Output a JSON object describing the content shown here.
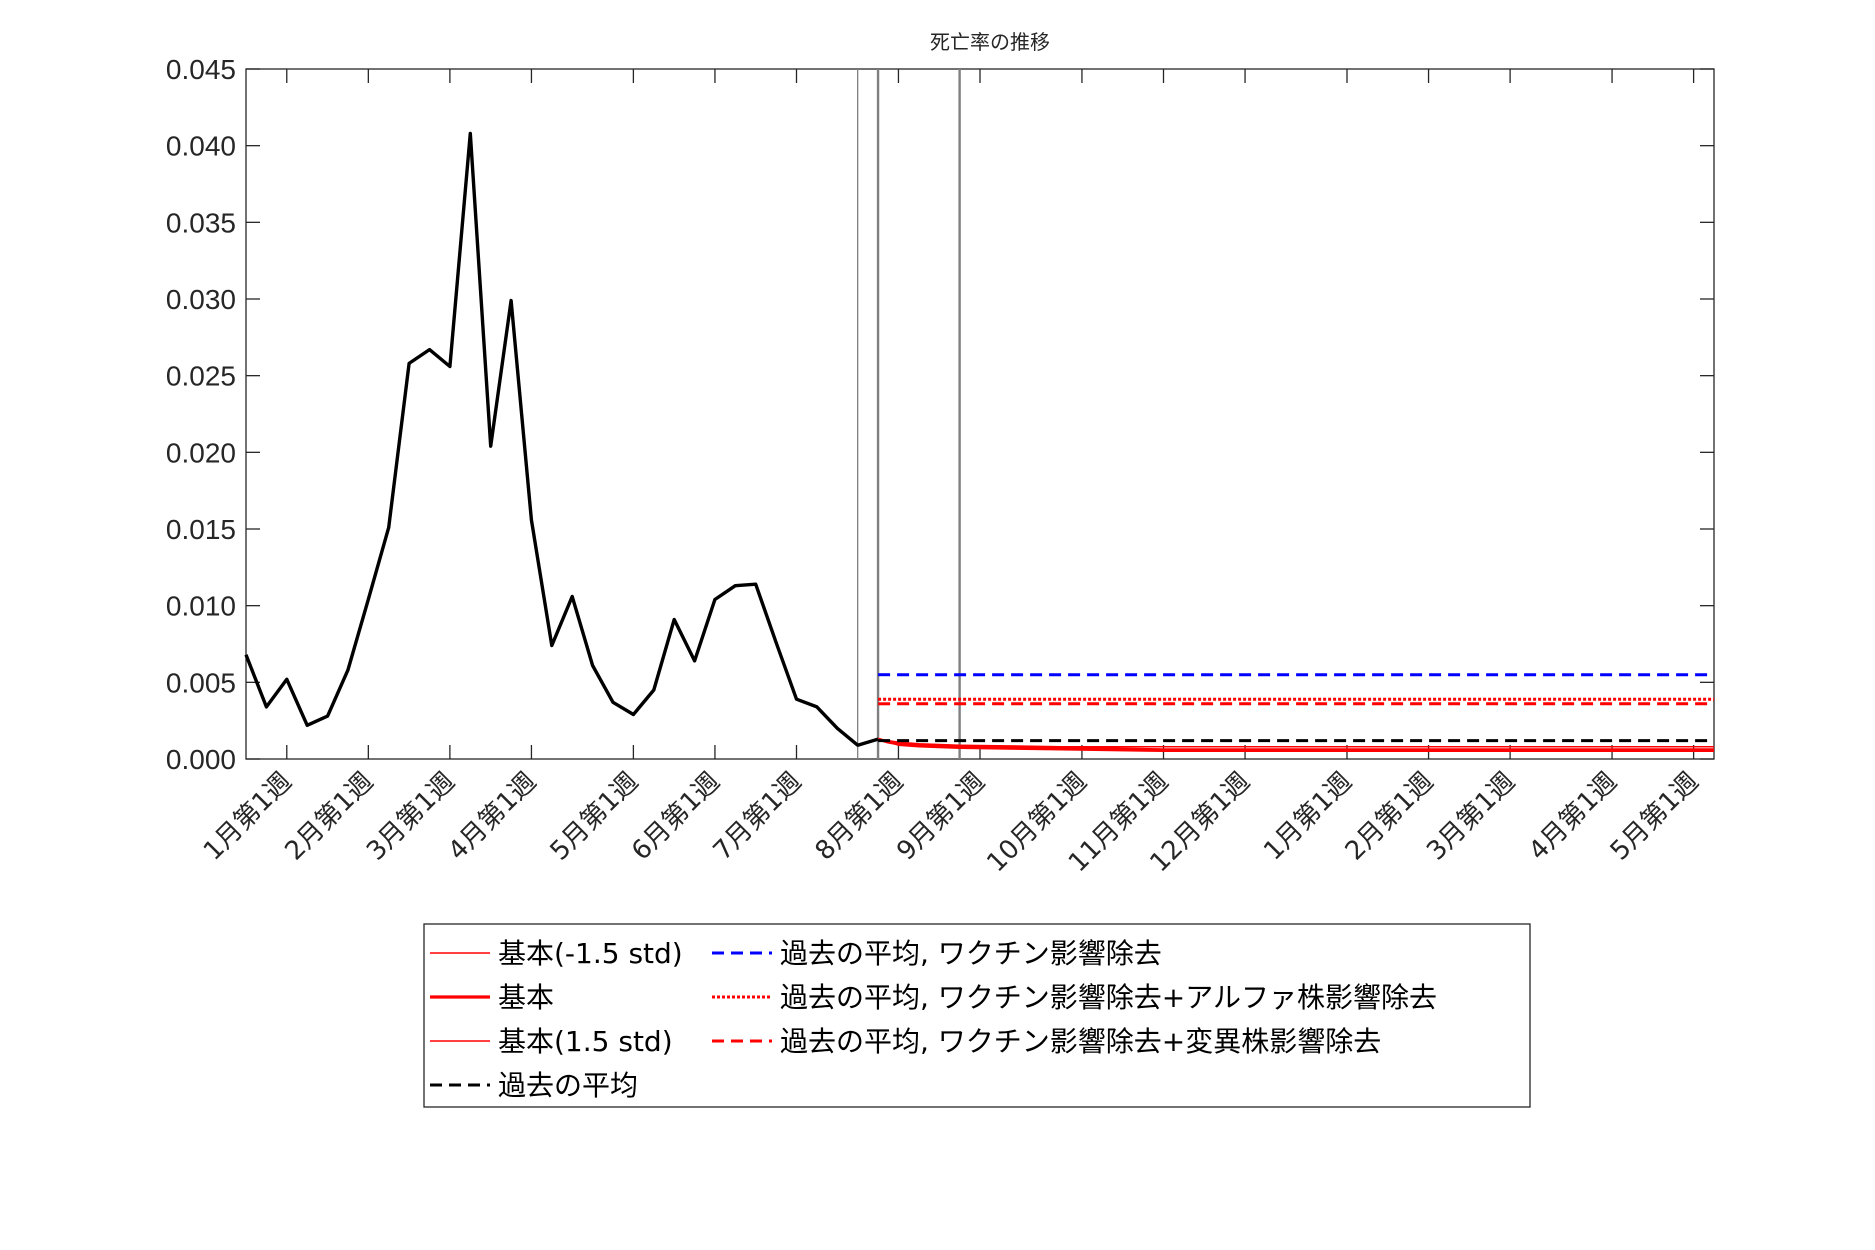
{
  "chart_data": {
    "type": "line",
    "title": "死亡率の推移",
    "xlabel": "",
    "ylabel": "",
    "ylim": [
      0,
      0.045
    ],
    "xlim": [
      0,
      72
    ],
    "y_ticks": [
      0,
      0.005,
      0.01,
      0.015,
      0.02,
      0.025,
      0.03,
      0.035,
      0.04,
      0.045
    ],
    "y_tick_labels": [
      "0.000",
      "0.005",
      "0.010",
      "0.015",
      "0.020",
      "0.025",
      "0.030",
      "0.035",
      "0.040",
      "0.045"
    ],
    "x_ticks": [
      {
        "x": 2,
        "label": "1月第1週"
      },
      {
        "x": 6,
        "label": "2月第1週"
      },
      {
        "x": 10,
        "label": "3月第1週"
      },
      {
        "x": 14,
        "label": "4月第1週"
      },
      {
        "x": 19,
        "label": "5月第1週"
      },
      {
        "x": 23,
        "label": "6月第1週"
      },
      {
        "x": 27,
        "label": "7月第1週"
      },
      {
        "x": 32,
        "label": "8月第1週"
      },
      {
        "x": 36,
        "label": "9月第1週"
      },
      {
        "x": 41,
        "label": "10月第1週"
      },
      {
        "x": 45,
        "label": "11月第1週"
      },
      {
        "x": 49,
        "label": "12月第1週"
      },
      {
        "x": 54,
        "label": "1月第1週"
      },
      {
        "x": 58,
        "label": "2月第1週"
      },
      {
        "x": 62,
        "label": "3月第1週"
      },
      {
        "x": 67,
        "label": "4月第1週"
      },
      {
        "x": 71,
        "label": "5月第1週"
      }
    ],
    "vertical_lines": [
      30,
      31,
      35
    ],
    "grid": false,
    "legend_position": "bottom",
    "legend_columns": [
      [
        "基本(-1.5 std)",
        "基本",
        "基本(1.5 std)",
        "過去の平均"
      ],
      [
        "過去の平均, ワクチン影響除去",
        "過去の平均, ワクチン影響除去+アルファ株影響除去",
        "過去の平均, ワクチン影響除去+変異株影響除去"
      ]
    ],
    "colors": {
      "black": "#000000",
      "red": "#ff0000",
      "blue": "#0000ff",
      "vline": "#808080"
    },
    "observed": {
      "x": [
        0,
        1,
        2,
        3,
        4,
        5,
        6,
        7,
        8,
        9,
        10,
        11,
        12,
        13,
        14,
        15,
        16,
        17,
        18,
        19,
        20,
        21,
        22,
        23,
        24,
        25,
        26,
        27,
        28,
        29,
        30,
        31
      ],
      "y": [
        0.0068,
        0.0034,
        0.0052,
        0.0022,
        0.0028,
        0.0058,
        0.0104,
        0.0151,
        0.0258,
        0.0267,
        0.0256,
        0.0408,
        0.0204,
        0.0299,
        0.0156,
        0.0074,
        0.0106,
        0.0061,
        0.0037,
        0.0029,
        0.0045,
        0.0091,
        0.0064,
        0.0104,
        0.0113,
        0.0114,
        0.0076,
        0.0039,
        0.0034,
        0.002,
        0.0009,
        0.0013
      ]
    },
    "series": [
      {
        "name": "基本(-1.5 std)",
        "color": "#ff0000",
        "style": "solid-thin",
        "x": [
          31,
          31.5,
          32,
          33,
          35,
          40,
          45,
          50,
          55,
          60,
          65,
          72
        ],
        "y": [
          0.0013,
          0.0011,
          0.0009,
          0.0008,
          0.0007,
          0.0006,
          0.0005,
          0.0005,
          0.0005,
          0.0005,
          0.0005,
          0.0005
        ]
      },
      {
        "name": "基本",
        "color": "#ff0000",
        "style": "solid-thick",
        "x": [
          31,
          31.5,
          32,
          33,
          35,
          40,
          45,
          50,
          55,
          60,
          65,
          72
        ],
        "y": [
          0.0013,
          0.0011,
          0.001,
          0.0009,
          0.0008,
          0.0007,
          0.0006,
          0.0006,
          0.0006,
          0.0006,
          0.0006,
          0.0006
        ]
      },
      {
        "name": "基本(1.5 std)",
        "color": "#ff0000",
        "style": "solid-thin",
        "x": [
          31,
          31.5,
          32,
          33,
          35,
          40,
          45,
          50,
          55,
          60,
          65,
          72
        ],
        "y": [
          0.0013,
          0.0012,
          0.0011,
          0.001,
          0.0009,
          0.0008,
          0.0008,
          0.0008,
          0.0008,
          0.0008,
          0.0008,
          0.0008
        ]
      },
      {
        "name": "過去の平均",
        "color": "#000000",
        "style": "dashed",
        "x": [
          31,
          72
        ],
        "y": [
          0.0012,
          0.0012
        ]
      },
      {
        "name": "過去の平均, ワクチン影響除去",
        "color": "#0000ff",
        "style": "dashed",
        "x": [
          31,
          72
        ],
        "y": [
          0.0055,
          0.0055
        ]
      },
      {
        "name": "過去の平均, ワクチン影響除去+アルファ株影響除去",
        "color": "#ff0000",
        "style": "dotted",
        "x": [
          31,
          72
        ],
        "y": [
          0.0039,
          0.0039
        ]
      },
      {
        "name": "過去の平均, ワクチン影響除去+変異株影響除去",
        "color": "#ff0000",
        "style": "dashed",
        "x": [
          31,
          72
        ],
        "y": [
          0.0036,
          0.0036
        ]
      }
    ]
  }
}
